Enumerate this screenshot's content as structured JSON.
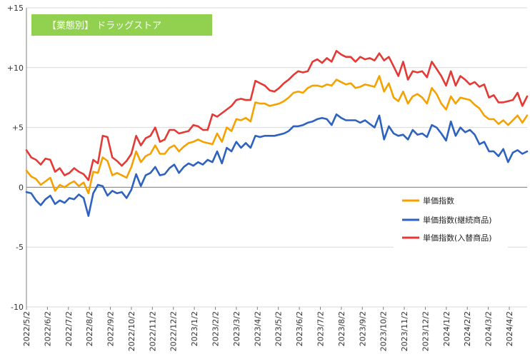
{
  "colors": {
    "title_bg": "#92d050",
    "grid": "#d9d9d9",
    "axis": "#808080",
    "series": [
      "#f5a200",
      "#2e62c0",
      "#e53935"
    ]
  },
  "chart_data": {
    "type": "line",
    "title": "【業態別】 ドラッグストア",
    "xlabel": "",
    "ylabel": "",
    "ylim": [
      -10,
      15
    ],
    "yticks": [
      -10,
      -5,
      0,
      5,
      10,
      15
    ],
    "ytick_labels": [
      "-10",
      "-5",
      "0",
      "+5",
      "+10",
      "+15"
    ],
    "xtick_labels": [
      "2022/5/2",
      "2022/6/2",
      "2022/7/2",
      "2022/8/2",
      "2022/9/2",
      "2022/10/2",
      "2022/11/2",
      "2022/12/2",
      "2023/1/2",
      "2023/2/2",
      "2023/3/2",
      "2023/4/2",
      "2023/5/2",
      "2023/6/2",
      "2023/7/2",
      "2023/8/2",
      "2023/9/2",
      "2023/10/2",
      "2023/11/2",
      "2023/12/2",
      "2024/1/2",
      "2024/2/2",
      "2024/3/2",
      "2024/4/2"
    ],
    "grid": "horizontal",
    "legend_position": "right",
    "series": [
      {
        "name": "単価指数",
        "values": [
          1.4,
          0.9,
          0.7,
          0.2,
          0.5,
          0.8,
          -0.3,
          0.2,
          0.0,
          0.3,
          0.5,
          0.1,
          0.4,
          -0.5,
          1.3,
          1.2,
          2.5,
          2.2,
          1.0,
          1.2,
          1.0,
          0.8,
          1.7,
          3.0,
          2.1,
          2.6,
          2.8,
          3.5,
          2.8,
          2.8,
          3.3,
          3.5,
          3.0,
          3.4,
          3.7,
          3.8,
          4.0,
          3.8,
          3.7,
          3.6,
          4.5,
          3.8,
          5.0,
          4.7,
          5.7,
          5.6,
          5.8,
          5.5,
          7.1,
          7.0,
          7.0,
          6.8,
          6.9,
          7.0,
          7.2,
          7.5,
          7.9,
          8.0,
          7.9,
          8.3,
          8.5,
          8.5,
          8.4,
          8.6,
          8.5,
          9.0,
          8.8,
          8.6,
          8.7,
          8.3,
          8.4,
          8.6,
          8.5,
          8.4,
          9.3,
          8.0,
          8.7,
          7.5,
          7.2,
          8.0,
          7.0,
          7.6,
          7.8,
          7.5,
          7.0,
          8.3,
          7.8,
          7.0,
          6.5,
          7.6,
          7.0,
          7.5,
          7.4,
          7.3,
          6.9,
          6.6,
          6.0,
          5.7,
          5.7,
          5.3,
          5.6,
          5.2,
          5.6,
          6.0,
          5.4,
          6.0
        ]
      },
      {
        "name": "単価指数(継続商品)",
        "values": [
          -0.4,
          -0.5,
          -1.1,
          -1.5,
          -1.0,
          -0.7,
          -1.4,
          -1.1,
          -1.3,
          -0.9,
          -1.0,
          -0.6,
          -0.9,
          -2.4,
          -0.5,
          0.2,
          0.1,
          -0.7,
          -0.3,
          -0.5,
          -0.4,
          -0.9,
          -0.2,
          1.1,
          0.1,
          1.0,
          1.2,
          1.7,
          1.0,
          1.1,
          1.6,
          1.9,
          1.2,
          1.7,
          2.0,
          1.8,
          2.1,
          1.9,
          2.3,
          2.1,
          3.0,
          2.0,
          3.3,
          3.0,
          3.8,
          3.3,
          3.7,
          3.3,
          4.3,
          4.2,
          4.3,
          4.3,
          4.3,
          4.4,
          4.5,
          4.7,
          5.1,
          5.1,
          5.2,
          5.4,
          5.5,
          5.7,
          5.8,
          5.7,
          5.2,
          6.1,
          5.8,
          5.6,
          5.6,
          5.6,
          5.4,
          5.6,
          5.3,
          5.0,
          6.0,
          4.0,
          5.1,
          4.5,
          4.3,
          4.4,
          4.0,
          4.8,
          4.4,
          4.5,
          4.2,
          5.2,
          5.0,
          4.5,
          3.9,
          5.5,
          4.3,
          5.0,
          4.6,
          4.8,
          4.4,
          3.6,
          3.8,
          3.0,
          3.0,
          2.6,
          3.2,
          2.1,
          2.9,
          3.1,
          2.8,
          3.0
        ]
      },
      {
        "name": "単価指数(入替商品)",
        "values": [
          3.1,
          2.5,
          2.3,
          1.9,
          2.4,
          2.3,
          1.3,
          1.6,
          1.0,
          1.2,
          1.6,
          1.3,
          1.1,
          0.6,
          2.3,
          2.0,
          4.3,
          4.2,
          2.5,
          2.2,
          1.8,
          2.2,
          2.8,
          4.3,
          3.5,
          4.1,
          4.3,
          5.0,
          3.8,
          4.0,
          4.8,
          4.8,
          4.5,
          4.6,
          4.7,
          5.2,
          5.1,
          4.8,
          4.8,
          6.1,
          5.9,
          6.2,
          6.5,
          6.8,
          7.3,
          7.4,
          7.3,
          7.3,
          8.9,
          8.7,
          8.5,
          8.1,
          8.0,
          8.3,
          8.7,
          9.0,
          9.4,
          9.7,
          9.6,
          9.7,
          10.5,
          10.7,
          10.4,
          10.8,
          10.5,
          11.4,
          11.1,
          10.9,
          10.9,
          10.5,
          10.9,
          10.7,
          10.8,
          10.6,
          11.2,
          10.6,
          10.9,
          10.1,
          9.3,
          10.5,
          9.0,
          9.7,
          9.6,
          9.7,
          9.2,
          10.5,
          9.9,
          9.3,
          8.5,
          9.7,
          8.5,
          9.3,
          9.0,
          8.6,
          8.8,
          8.4,
          8.6,
          7.5,
          7.7,
          7.1,
          7.1,
          7.2,
          7.3,
          7.9,
          6.8,
          7.6
        ]
      }
    ]
  }
}
